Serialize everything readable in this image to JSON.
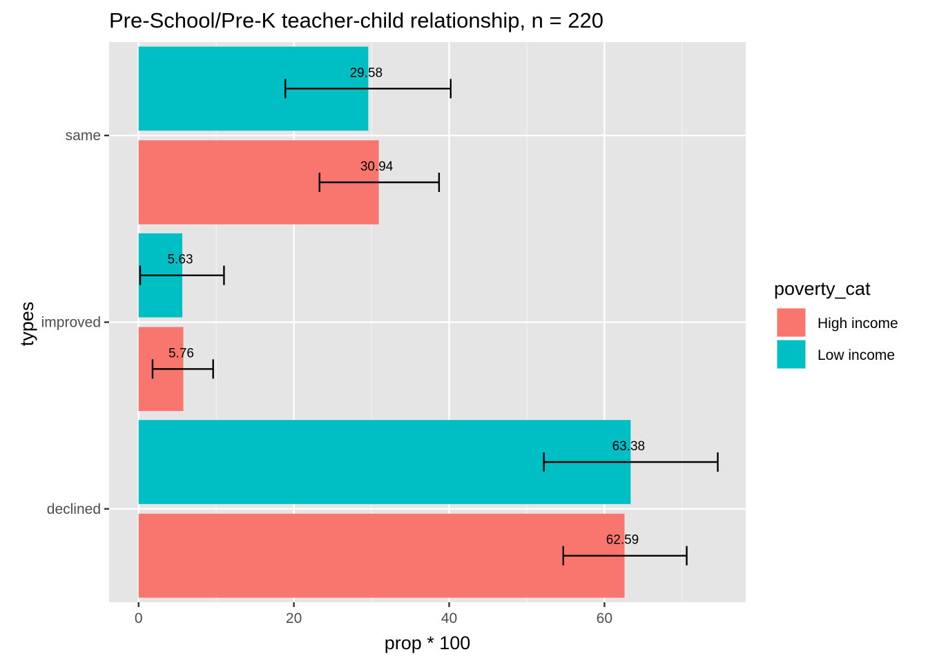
{
  "chart_data": {
    "type": "bar",
    "orientation": "horizontal",
    "title": "Pre-School/Pre-K teacher-child relationship, n = 220",
    "xlabel": "prop * 100",
    "ylabel": "types",
    "categories": [
      "declined",
      "improved",
      "same"
    ],
    "xlim": [
      -3.8,
      78.2
    ],
    "x_ticks": [
      0,
      20,
      40,
      60
    ],
    "grid": true,
    "legend": {
      "title": "poverty_cat",
      "position": "right"
    },
    "series": [
      {
        "name": "High income",
        "color": "#F8766D",
        "values": [
          62.59,
          5.76,
          30.94
        ],
        "labels": [
          "62.59",
          "5.76",
          "30.94"
        ],
        "error_low": [
          54.7,
          1.8,
          23.3
        ],
        "error_high": [
          70.6,
          9.6,
          38.7
        ]
      },
      {
        "name": "Low income",
        "color": "#00BFC4",
        "values": [
          63.38,
          5.63,
          29.58
        ],
        "labels": [
          "63.38",
          "5.63",
          "29.58"
        ],
        "error_low": [
          52.2,
          0.2,
          18.9
        ],
        "error_high": [
          74.6,
          11.0,
          40.2
        ]
      }
    ]
  }
}
